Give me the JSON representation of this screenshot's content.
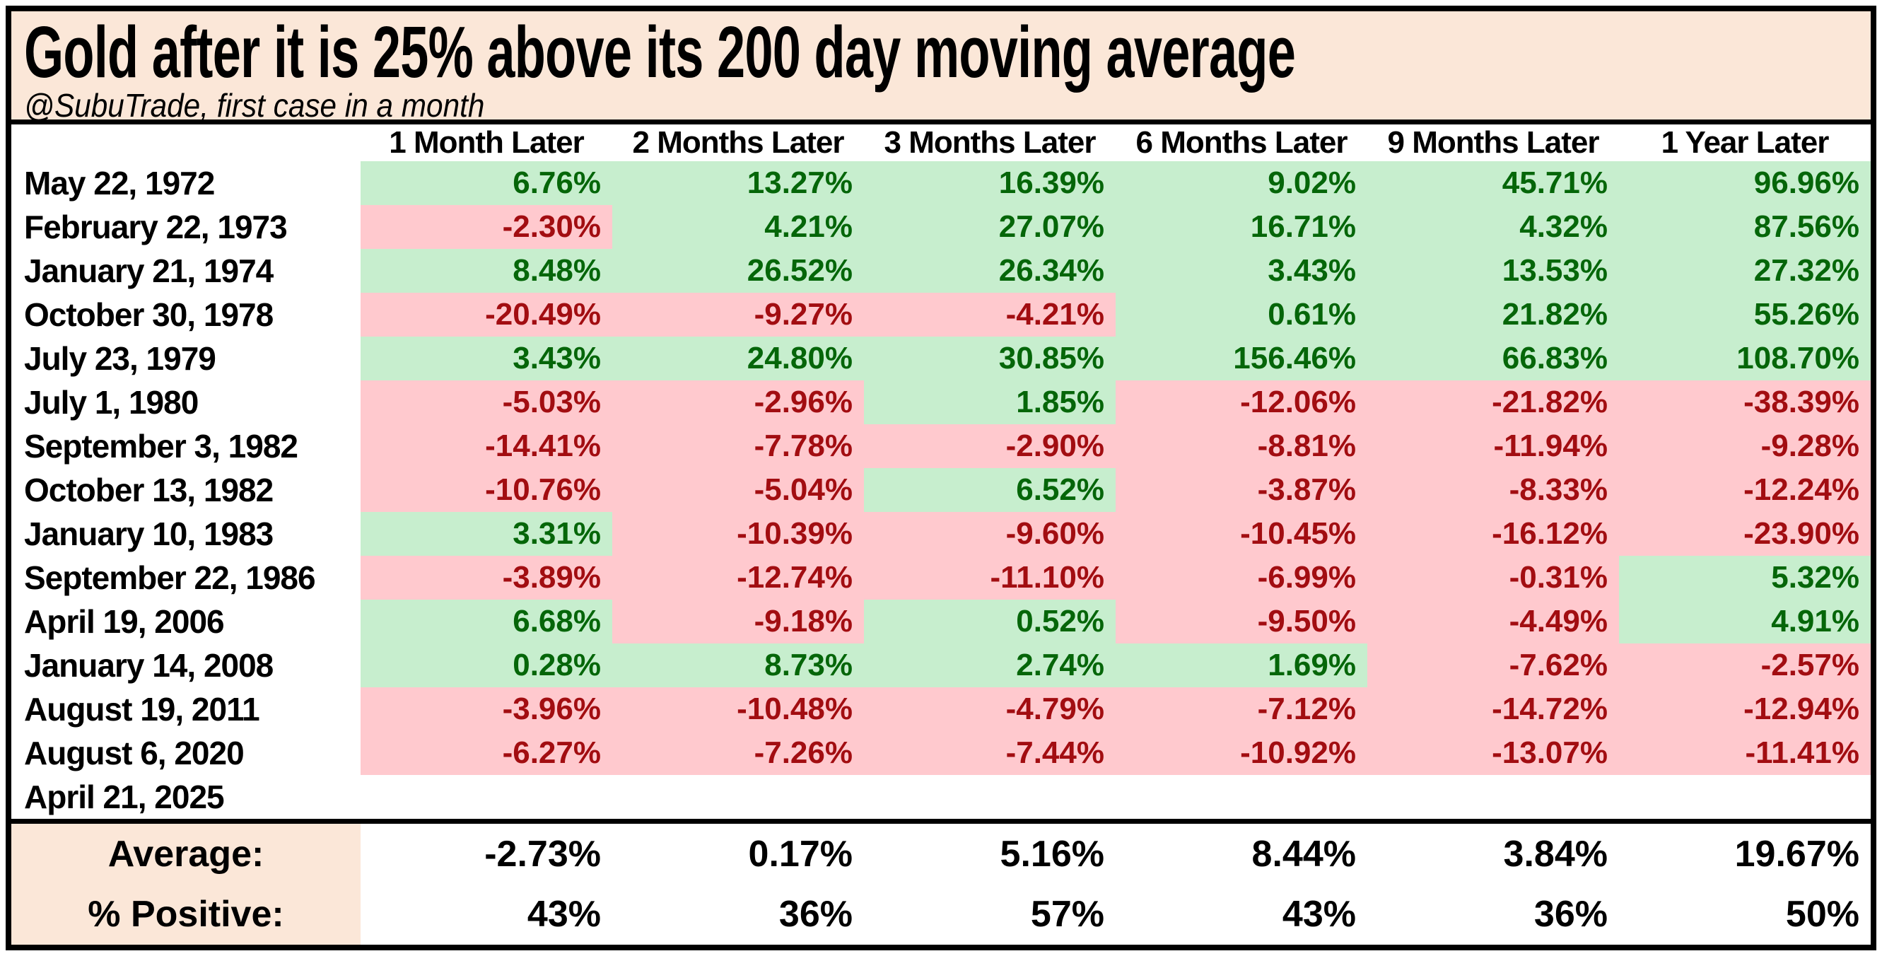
{
  "header": {
    "title": "Gold after it is 25% above its 200 day moving average",
    "subtitle": "@SubuTrade, first case in a month"
  },
  "colors": {
    "peach": "#FBE7D8",
    "green_bg": "#C7EECE",
    "red_bg": "#FFC9CE",
    "green_text": "#056609",
    "red_text": "#A20D11",
    "border": "#000000"
  },
  "table": {
    "columns": [
      "1 Month Later",
      "2 Months Later",
      "3 Months Later",
      "6 Months Later",
      "9 Months Later",
      "1 Year Later"
    ],
    "rows": [
      {
        "date": "May 22, 1972",
        "values": [
          "6.76%",
          "13.27%",
          "16.39%",
          "9.02%",
          "45.71%",
          "96.96%"
        ]
      },
      {
        "date": "February 22, 1973",
        "values": [
          "-2.30%",
          "4.21%",
          "27.07%",
          "16.71%",
          "4.32%",
          "87.56%"
        ]
      },
      {
        "date": "January 21, 1974",
        "values": [
          "8.48%",
          "26.52%",
          "26.34%",
          "3.43%",
          "13.53%",
          "27.32%"
        ]
      },
      {
        "date": "October 30, 1978",
        "values": [
          "-20.49%",
          "-9.27%",
          "-4.21%",
          "0.61%",
          "21.82%",
          "55.26%"
        ]
      },
      {
        "date": "July 23, 1979",
        "values": [
          "3.43%",
          "24.80%",
          "30.85%",
          "156.46%",
          "66.83%",
          "108.70%"
        ]
      },
      {
        "date": "July 1, 1980",
        "values": [
          "-5.03%",
          "-2.96%",
          "1.85%",
          "-12.06%",
          "-21.82%",
          "-38.39%"
        ]
      },
      {
        "date": "September 3, 1982",
        "values": [
          "-14.41%",
          "-7.78%",
          "-2.90%",
          "-8.81%",
          "-11.94%",
          "-9.28%"
        ]
      },
      {
        "date": "October 13, 1982",
        "values": [
          "-10.76%",
          "-5.04%",
          "6.52%",
          "-3.87%",
          "-8.33%",
          "-12.24%"
        ]
      },
      {
        "date": "January 10, 1983",
        "values": [
          "3.31%",
          "-10.39%",
          "-9.60%",
          "-10.45%",
          "-16.12%",
          "-23.90%"
        ]
      },
      {
        "date": "September 22, 1986",
        "values": [
          "-3.89%",
          "-12.74%",
          "-11.10%",
          "-6.99%",
          "-0.31%",
          "5.32%"
        ]
      },
      {
        "date": "April 19, 2006",
        "values": [
          "6.68%",
          "-9.18%",
          "0.52%",
          "-9.50%",
          "-4.49%",
          "4.91%"
        ]
      },
      {
        "date": "January 14, 2008",
        "values": [
          "0.28%",
          "8.73%",
          "2.74%",
          "1.69%",
          "-7.62%",
          "-2.57%"
        ]
      },
      {
        "date": "August 19, 2011",
        "values": [
          "-3.96%",
          "-10.48%",
          "-4.79%",
          "-7.12%",
          "-14.72%",
          "-12.94%"
        ]
      },
      {
        "date": "August 6, 2020",
        "values": [
          "-6.27%",
          "-7.26%",
          "-7.44%",
          "-10.92%",
          "-13.07%",
          "-11.41%"
        ]
      },
      {
        "date": "April 21, 2025",
        "values": [
          "",
          "",
          "",
          "",
          "",
          ""
        ]
      }
    ],
    "summary": [
      {
        "label": "Average:",
        "values": [
          "-2.73%",
          "0.17%",
          "5.16%",
          "8.44%",
          "3.84%",
          "19.67%"
        ]
      },
      {
        "label": "% Positive:",
        "values": [
          "43%",
          "36%",
          "57%",
          "43%",
          "36%",
          "50%"
        ]
      }
    ]
  },
  "chart_data": {
    "type": "table",
    "title": "Gold after it is 25% above its 200 day moving average",
    "subtitle": "@SubuTrade, first case in a month",
    "categories": [
      "May 22, 1972",
      "February 22, 1973",
      "January 21, 1974",
      "October 30, 1978",
      "July 23, 1979",
      "July 1, 1980",
      "September 3, 1982",
      "October 13, 1982",
      "January 10, 1983",
      "September 22, 1986",
      "April 19, 2006",
      "January 14, 2008",
      "August 19, 2011",
      "August 6, 2020",
      "April 21, 2025"
    ],
    "series": [
      {
        "name": "1 Month Later",
        "values": [
          6.76,
          -2.3,
          8.48,
          -20.49,
          3.43,
          -5.03,
          -14.41,
          -10.76,
          3.31,
          -3.89,
          6.68,
          0.28,
          -3.96,
          -6.27,
          null
        ]
      },
      {
        "name": "2 Months Later",
        "values": [
          13.27,
          4.21,
          26.52,
          -9.27,
          24.8,
          -2.96,
          -7.78,
          -5.04,
          -10.39,
          -12.74,
          -9.18,
          8.73,
          -10.48,
          -7.26,
          null
        ]
      },
      {
        "name": "3 Months Later",
        "values": [
          16.39,
          27.07,
          26.34,
          -4.21,
          30.85,
          1.85,
          -2.9,
          6.52,
          -9.6,
          -11.1,
          0.52,
          2.74,
          -4.79,
          -7.44,
          null
        ]
      },
      {
        "name": "6 Months Later",
        "values": [
          9.02,
          16.71,
          3.43,
          0.61,
          156.46,
          -12.06,
          -8.81,
          -3.87,
          -10.45,
          -6.99,
          -9.5,
          1.69,
          -7.12,
          -10.92,
          null
        ]
      },
      {
        "name": "9 Months Later",
        "values": [
          45.71,
          4.32,
          13.53,
          21.82,
          66.83,
          -21.82,
          -11.94,
          -8.33,
          -16.12,
          -0.31,
          -4.49,
          -7.62,
          -14.72,
          -13.07,
          null
        ]
      },
      {
        "name": "1 Year Later",
        "values": [
          96.96,
          87.56,
          27.32,
          55.26,
          108.7,
          -38.39,
          -9.28,
          -12.24,
          -23.9,
          5.32,
          4.91,
          -2.57,
          -12.94,
          -11.41,
          null
        ]
      }
    ],
    "summary_rows": [
      {
        "name": "Average",
        "values": [
          -2.73,
          0.17,
          5.16,
          8.44,
          3.84,
          19.67
        ],
        "unit": "%"
      },
      {
        "name": "% Positive",
        "values": [
          43,
          36,
          57,
          43,
          36,
          50
        ],
        "unit": "%"
      }
    ],
    "value_unit": "%",
    "cell_coloring": "green background for positive returns, pink background for negative returns"
  }
}
